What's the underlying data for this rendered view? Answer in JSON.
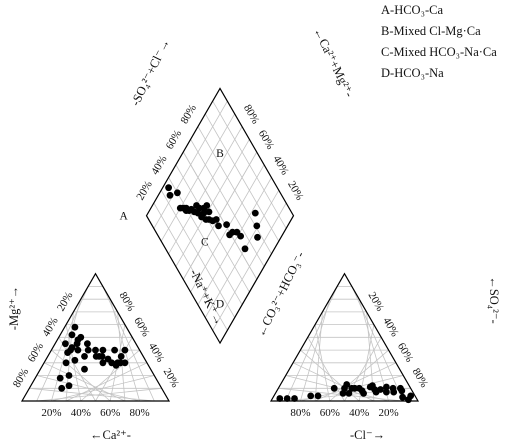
{
  "chart_data": {
    "type": "scatter",
    "diagram": "Piper trilinear",
    "legend": {
      "placement": "top-right",
      "items": [
        {
          "key": "A",
          "label": "A-HCO₃-Ca"
        },
        {
          "key": "B",
          "label": "B-Mixed Cl-Mg·Ca"
        },
        {
          "key": "C",
          "label": "C-Mixed HCO₃-Na·Ca"
        },
        {
          "key": "D",
          "label": "D-HCO₃-Na"
        }
      ]
    },
    "zone_labels": [
      "A",
      "B",
      "C",
      "D"
    ],
    "tick_labels": [
      "20%",
      "40%",
      "60%",
      "80%"
    ],
    "axis_labels": {
      "cation_bottom": "←Ca²⁺-",
      "cation_left": "-Mg²⁺→",
      "cation_right": "-Na⁺+K⁺→",
      "anion_bottom": "-Cl⁻→",
      "anion_right": "←SO₄²⁻-",
      "anion_left": "←CO₃²⁻+HCO₃⁻-",
      "diamond_upper_left": "-SO₄²⁻+Cl⁻→",
      "diamond_upper_right": "←Ca²⁺+Mg²⁺-"
    },
    "cation_triangle": {
      "components": [
        "Ca",
        "Mg",
        "Na+K"
      ],
      "points": [
        {
          "ca": 68,
          "mg": 10
        },
        {
          "ca": 62,
          "mg": 12
        },
        {
          "ca": 65,
          "mg": 18
        },
        {
          "ca": 58,
          "mg": 20
        },
        {
          "ca": 55,
          "mg": 30
        },
        {
          "ca": 45,
          "mg": 25
        },
        {
          "ca": 48,
          "mg": 32
        },
        {
          "ca": 50,
          "mg": 38
        },
        {
          "ca": 48,
          "mg": 45
        },
        {
          "ca": 47,
          "mg": 40
        },
        {
          "ca": 45,
          "mg": 42
        },
        {
          "ca": 42,
          "mg": 40
        },
        {
          "ca": 40,
          "mg": 45
        },
        {
          "ca": 38,
          "mg": 48
        },
        {
          "ca": 35,
          "mg": 50
        },
        {
          "ca": 40,
          "mg": 52
        },
        {
          "ca": 35,
          "mg": 58
        },
        {
          "ca": 33,
          "mg": 45
        },
        {
          "ca": 32,
          "mg": 35
        },
        {
          "ca": 30,
          "mg": 40
        },
        {
          "ca": 25,
          "mg": 40
        },
        {
          "ca": 28,
          "mg": 35
        },
        {
          "ca": 30,
          "mg": 35
        },
        {
          "ca": 35,
          "mg": 40
        },
        {
          "ca": 30,
          "mg": 30
        },
        {
          "ca": 25,
          "mg": 33
        },
        {
          "ca": 24,
          "mg": 30
        },
        {
          "ca": 20,
          "mg": 30
        },
        {
          "ca": 22,
          "mg": 28
        },
        {
          "ca": 18,
          "mg": 30
        },
        {
          "ca": 15,
          "mg": 30
        },
        {
          "ca": 17,
          "mg": 40
        },
        {
          "ca": 10,
          "mg": 40
        },
        {
          "ca": 15,
          "mg": 35
        },
        {
          "ca": 40,
          "mg": 35
        }
      ]
    },
    "anion_triangle": {
      "components": [
        "HCO3+CO3",
        "Cl",
        "SO4"
      ],
      "points": [
        {
          "cl": 93,
          "so4": 1
        },
        {
          "cl": 93,
          "so4": 4
        },
        {
          "cl": 88,
          "so4": 3
        },
        {
          "cl": 85,
          "so4": 8
        },
        {
          "cl": 83,
          "so4": 10
        },
        {
          "cl": 80,
          "so4": 7
        },
        {
          "cl": 78,
          "so4": 10
        },
        {
          "cl": 75,
          "so4": 7
        },
        {
          "cl": 73,
          "so4": 11
        },
        {
          "cl": 70,
          "so4": 9
        },
        {
          "cl": 68,
          "so4": 7
        },
        {
          "cl": 66,
          "so4": 9
        },
        {
          "cl": 63,
          "so4": 12
        },
        {
          "cl": 62,
          "so4": 11
        },
        {
          "cl": 60,
          "so4": 6
        },
        {
          "cl": 58,
          "so4": 8
        },
        {
          "cl": 55,
          "so4": 10
        },
        {
          "cl": 52,
          "so4": 10
        },
        {
          "cl": 50,
          "so4": 10
        },
        {
          "cl": 50,
          "so4": 6
        },
        {
          "cl": 46,
          "so4": 6
        },
        {
          "cl": 45,
          "so4": 10
        },
        {
          "cl": 45,
          "so4": 13
        },
        {
          "cl": 38,
          "so4": 10
        },
        {
          "cl": 30,
          "so4": 4
        },
        {
          "cl": 25,
          "so4": 4
        },
        {
          "cl": 15,
          "so4": 2
        },
        {
          "cl": 10,
          "so4": 2
        },
        {
          "cl": 5,
          "so4": 2
        }
      ]
    },
    "diamond": {
      "note": "points as [SO4+Cl %, Ca+Mg %]",
      "points": [
        [
          67,
          84
        ],
        [
          71,
          79
        ],
        [
          75,
          73
        ],
        [
          54,
          80
        ],
        [
          56,
          72
        ],
        [
          55,
          68
        ],
        [
          52,
          65
        ],
        [
          49,
          64
        ],
        [
          51,
          58
        ],
        [
          45,
          53
        ],
        [
          46,
          49
        ],
        [
          43,
          47
        ],
        [
          41,
          44
        ],
        [
          39,
          42
        ],
        [
          37,
          38
        ],
        [
          36,
          34
        ],
        [
          34,
          31
        ],
        [
          40,
          38
        ],
        [
          39,
          33
        ],
        [
          38,
          30
        ],
        [
          42,
          36
        ],
        [
          44,
          41
        ],
        [
          33,
          28
        ],
        [
          31,
          27
        ],
        [
          30,
          24
        ],
        [
          28,
          22
        ],
        [
          26,
          20
        ],
        [
          45,
          37
        ],
        [
          29,
          25
        ],
        [
          30,
          12
        ],
        [
          24,
          8
        ],
        [
          26,
          4
        ]
      ]
    }
  }
}
